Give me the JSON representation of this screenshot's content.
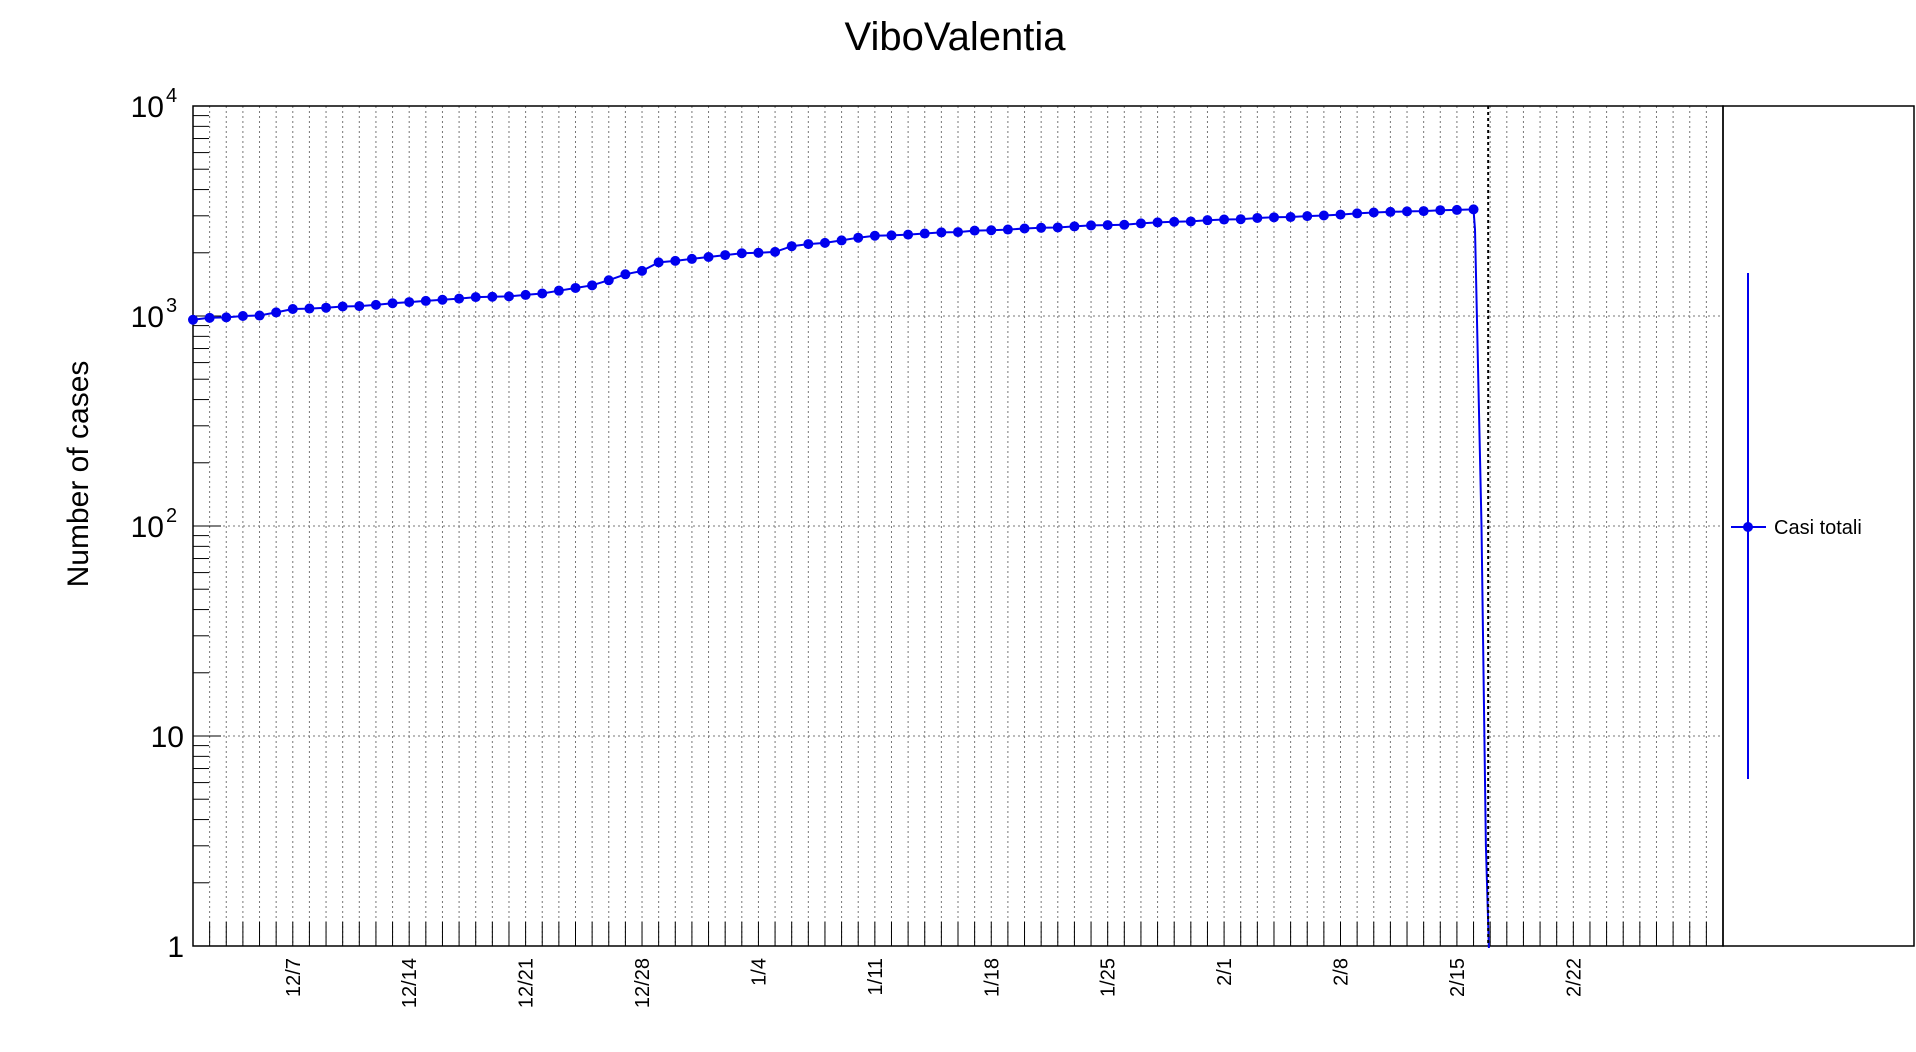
{
  "chart_data": {
    "type": "line",
    "title": "ViboValentia",
    "ylabel": "Number of cases",
    "xlabel": "",
    "yscale": "log",
    "ylim": [
      1,
      10000
    ],
    "y_ticks": [
      {
        "value": 1,
        "base": "1",
        "exp": ""
      },
      {
        "value": 10,
        "base": "10",
        "exp": ""
      },
      {
        "value": 100,
        "base": "10",
        "exp": "2"
      },
      {
        "value": 1000,
        "base": "10",
        "exp": "3"
      },
      {
        "value": 10000,
        "base": "10",
        "exp": "4"
      }
    ],
    "x_start_date": "2020-12-01",
    "x_end_date": "2021-03-03",
    "x_tick_labels": [
      {
        "date": "2020-12-07",
        "label": "12/7"
      },
      {
        "date": "2020-12-14",
        "label": "12/14"
      },
      {
        "date": "2020-12-21",
        "label": "12/21"
      },
      {
        "date": "2020-12-28",
        "label": "12/28"
      },
      {
        "date": "2021-01-04",
        "label": "1/4"
      },
      {
        "date": "2021-01-11",
        "label": "1/11"
      },
      {
        "date": "2021-01-18",
        "label": "1/18"
      },
      {
        "date": "2021-01-25",
        "label": "1/25"
      },
      {
        "date": "2021-02-01",
        "label": "2/1"
      },
      {
        "date": "2021-02-08",
        "label": "2/8"
      },
      {
        "date": "2021-02-15",
        "label": "2/15"
      },
      {
        "date": "2021-02-22",
        "label": "2/22"
      }
    ],
    "grid": true,
    "marker_date": "2021-02-17",
    "legend": {
      "position": "right",
      "entries": [
        "Casi totali"
      ]
    },
    "colors": {
      "series": "#0000ee",
      "grid": "#777777",
      "axis": "#000000"
    },
    "series": [
      {
        "name": "Casi totali",
        "x": [
          "2020-12-01",
          "2020-12-02",
          "2020-12-03",
          "2020-12-04",
          "2020-12-05",
          "2020-12-06",
          "2020-12-07",
          "2020-12-08",
          "2020-12-09",
          "2020-12-10",
          "2020-12-11",
          "2020-12-12",
          "2020-12-13",
          "2020-12-14",
          "2020-12-15",
          "2020-12-16",
          "2020-12-17",
          "2020-12-18",
          "2020-12-19",
          "2020-12-20",
          "2020-12-21",
          "2020-12-22",
          "2020-12-23",
          "2020-12-24",
          "2020-12-25",
          "2020-12-26",
          "2020-12-27",
          "2020-12-28",
          "2020-12-29",
          "2020-12-30",
          "2020-12-31",
          "2021-01-01",
          "2021-01-02",
          "2021-01-03",
          "2021-01-04",
          "2021-01-05",
          "2021-01-06",
          "2021-01-07",
          "2021-01-08",
          "2021-01-09",
          "2021-01-10",
          "2021-01-11",
          "2021-01-12",
          "2021-01-13",
          "2021-01-14",
          "2021-01-15",
          "2021-01-16",
          "2021-01-17",
          "2021-01-18",
          "2021-01-19",
          "2021-01-20",
          "2021-01-21",
          "2021-01-22",
          "2021-01-23",
          "2021-01-24",
          "2021-01-25",
          "2021-01-26",
          "2021-01-27",
          "2021-01-28",
          "2021-01-29",
          "2021-01-30",
          "2021-01-31",
          "2021-02-01",
          "2021-02-02",
          "2021-02-03",
          "2021-02-04",
          "2021-02-05",
          "2021-02-06",
          "2021-02-07",
          "2021-02-08",
          "2021-02-09",
          "2021-02-10",
          "2021-02-11",
          "2021-02-12",
          "2021-02-13",
          "2021-02-14",
          "2021-02-15",
          "2021-02-16"
        ],
        "values": [
          960,
          980,
          985,
          1000,
          1005,
          1040,
          1080,
          1085,
          1095,
          1110,
          1115,
          1130,
          1150,
          1165,
          1180,
          1195,
          1210,
          1230,
          1235,
          1240,
          1260,
          1280,
          1320,
          1360,
          1400,
          1480,
          1580,
          1640,
          1800,
          1830,
          1870,
          1910,
          1950,
          1990,
          2000,
          2020,
          2150,
          2200,
          2230,
          2290,
          2360,
          2410,
          2420,
          2440,
          2470,
          2500,
          2510,
          2550,
          2560,
          2580,
          2610,
          2630,
          2640,
          2670,
          2700,
          2710,
          2720,
          2760,
          2790,
          2810,
          2820,
          2860,
          2880,
          2890,
          2930,
          2950,
          2960,
          2990,
          3010,
          3040,
          3080,
          3110,
          3130,
          3150,
          3160,
          3190,
          3200,
          3220
        ],
        "drop_to": 0.5
      }
    ]
  }
}
